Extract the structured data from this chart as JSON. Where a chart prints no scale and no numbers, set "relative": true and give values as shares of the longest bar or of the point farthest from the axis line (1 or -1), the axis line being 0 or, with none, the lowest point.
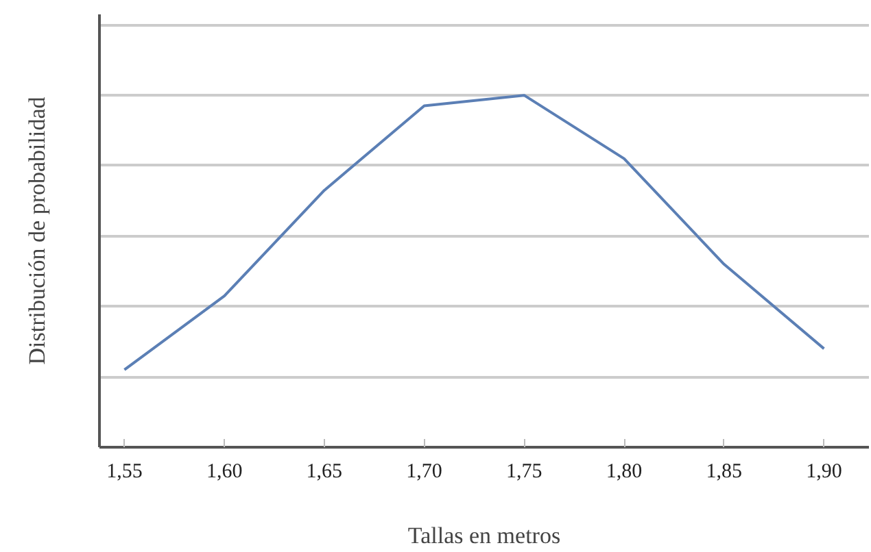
{
  "chart_data": {
    "type": "line",
    "xlabel": "Tallas en metros",
    "ylabel": "Distribución de probabilidad",
    "categories": [
      "1,55",
      "1,60",
      "1,65",
      "1,70",
      "1,75",
      "1,80",
      "1,85",
      "1,90"
    ],
    "relative": true,
    "grid": "y",
    "series": [
      {
        "color": "#5b7fb5",
        "values": [
          0.22,
          0.43,
          0.73,
          0.97,
          1.0,
          0.82,
          0.52,
          0.28
        ]
      }
    ]
  }
}
